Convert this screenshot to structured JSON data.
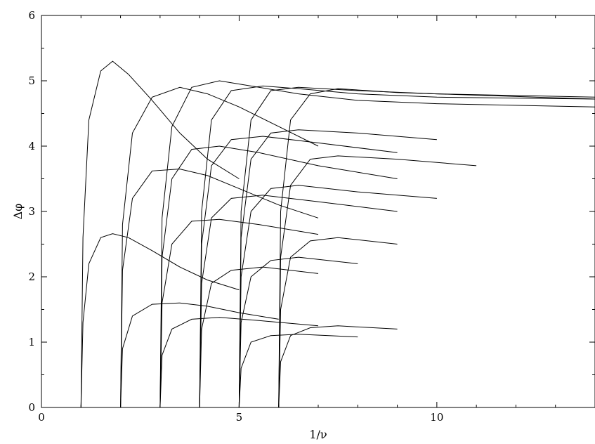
{
  "chart_data": {
    "type": "line",
    "title": "",
    "xlabel": "1/ν",
    "ylabel": "Δφ",
    "xlim": [
      0,
      14
    ],
    "ylim": [
      0,
      6
    ],
    "x_ticks": [
      0,
      5,
      10
    ],
    "x_tick_labels": [
      "0",
      "5",
      "10"
    ],
    "y_ticks": [
      0,
      1,
      2,
      3,
      4,
      5,
      6
    ],
    "y_tick_labels": [
      "0",
      "1",
      "2",
      "3",
      "4",
      "5",
      "6"
    ],
    "grid": false,
    "legend": "none",
    "line_color": "#000000",
    "description_of_curves": "Dense family of arch-shaped curves; each arch family starts at integer 1/ν (1,2,3,...) at Δφ=0, rises steeply, and peaks near Δφ≈5.3 (first), ≈4.7-5.0 for later families, with many lower sub-arches.",
    "series": [
      {
        "x": [
          1.0,
          1.05,
          1.2,
          1.5,
          1.8,
          2.2,
          2.8,
          3.5,
          4.2,
          5.0
        ],
        "y": [
          0,
          2.6,
          4.4,
          5.15,
          5.3,
          5.1,
          4.7,
          4.2,
          3.8,
          3.5
        ]
      },
      {
        "x": [
          1.0,
          1.05,
          1.2,
          1.5,
          1.8,
          2.2,
          2.8,
          3.5,
          4.2,
          5.0
        ],
        "y": [
          0,
          1.3,
          2.2,
          2.6,
          2.66,
          2.6,
          2.4,
          2.15,
          1.95,
          1.8
        ]
      },
      {
        "x": [
          2.0,
          2.05,
          2.3,
          2.8,
          3.5,
          4.2,
          5.0,
          6.0,
          7.0
        ],
        "y": [
          0,
          2.8,
          4.2,
          4.75,
          4.9,
          4.8,
          4.6,
          4.3,
          4.0
        ]
      },
      {
        "x": [
          2.0,
          2.05,
          2.3,
          2.8,
          3.5,
          4.2,
          5.0,
          6.0,
          7.0
        ],
        "y": [
          0,
          2.1,
          3.2,
          3.62,
          3.65,
          3.55,
          3.35,
          3.1,
          2.9
        ]
      },
      {
        "x": [
          2.0,
          2.05,
          2.3,
          2.8,
          3.5,
          4.2,
          5.0,
          6.0
        ],
        "y": [
          0,
          0.9,
          1.4,
          1.58,
          1.6,
          1.55,
          1.45,
          1.35
        ]
      },
      {
        "x": [
          3.0,
          3.05,
          3.3,
          3.8,
          4.5,
          5.5,
          6.5,
          8.0,
          10.0,
          14.0
        ],
        "y": [
          0,
          2.9,
          4.3,
          4.9,
          5.0,
          4.9,
          4.8,
          4.7,
          4.65,
          4.6
        ]
      },
      {
        "x": [
          3.0,
          3.05,
          3.3,
          3.8,
          4.5,
          5.5,
          7.0,
          9.0
        ],
        "y": [
          0,
          2.3,
          3.5,
          3.95,
          4.0,
          3.9,
          3.7,
          3.5
        ]
      },
      {
        "x": [
          3.0,
          3.05,
          3.3,
          3.8,
          4.5,
          5.5,
          7.0
        ],
        "y": [
          0,
          1.6,
          2.5,
          2.85,
          2.88,
          2.8,
          2.65
        ]
      },
      {
        "x": [
          3.0,
          3.05,
          3.3,
          3.8,
          4.5,
          5.5,
          7.0
        ],
        "y": [
          0,
          0.8,
          1.2,
          1.35,
          1.38,
          1.33,
          1.25
        ]
      },
      {
        "x": [
          4.0,
          4.05,
          4.3,
          4.8,
          5.6,
          6.5,
          8.0,
          10.0,
          14.0
        ],
        "y": [
          0,
          3.0,
          4.4,
          4.85,
          4.92,
          4.88,
          4.8,
          4.75,
          4.72
        ]
      },
      {
        "x": [
          4.0,
          4.05,
          4.3,
          4.8,
          5.6,
          7.0,
          9.0
        ],
        "y": [
          0,
          2.5,
          3.7,
          4.1,
          4.15,
          4.05,
          3.9
        ]
      },
      {
        "x": [
          4.0,
          4.05,
          4.3,
          4.8,
          5.6,
          7.0,
          9.0
        ],
        "y": [
          0,
          1.9,
          2.9,
          3.2,
          3.25,
          3.15,
          3.0
        ]
      },
      {
        "x": [
          4.0,
          4.05,
          4.3,
          4.8,
          5.6,
          7.0
        ],
        "y": [
          0,
          1.2,
          1.9,
          2.1,
          2.15,
          2.05
        ]
      },
      {
        "x": [
          5.0,
          5.05,
          5.3,
          5.8,
          6.5,
          8.0,
          10.0,
          14.0
        ],
        "y": [
          0,
          3.0,
          4.4,
          4.85,
          4.9,
          4.85,
          4.8,
          4.75
        ]
      },
      {
        "x": [
          5.0,
          5.05,
          5.3,
          5.8,
          6.5,
          8.0,
          10.0
        ],
        "y": [
          0,
          2.6,
          3.8,
          4.2,
          4.25,
          4.2,
          4.1
        ]
      },
      {
        "x": [
          5.0,
          5.05,
          5.3,
          5.8,
          6.5,
          8.0,
          10.0
        ],
        "y": [
          0,
          2.0,
          3.0,
          3.35,
          3.4,
          3.3,
          3.2
        ]
      },
      {
        "x": [
          5.0,
          5.05,
          5.3,
          5.8,
          6.5,
          8.0
        ],
        "y": [
          0,
          1.3,
          2.0,
          2.25,
          2.3,
          2.2
        ]
      },
      {
        "x": [
          5.0,
          5.05,
          5.3,
          5.8,
          6.5,
          8.0
        ],
        "y": [
          0,
          0.6,
          1.0,
          1.1,
          1.12,
          1.08
        ]
      },
      {
        "x": [
          6.0,
          6.05,
          6.3,
          6.8,
          7.5,
          9.0,
          11.0,
          14.0
        ],
        "y": [
          0,
          3.0,
          4.4,
          4.8,
          4.88,
          4.82,
          4.78,
          4.72
        ]
      },
      {
        "x": [
          6.0,
          6.05,
          6.3,
          6.8,
          7.5,
          9.0,
          11.0
        ],
        "y": [
          0,
          2.3,
          3.4,
          3.8,
          3.85,
          3.8,
          3.7
        ]
      },
      {
        "x": [
          6.0,
          6.05,
          6.3,
          6.8,
          7.5,
          9.0
        ],
        "y": [
          0,
          1.5,
          2.3,
          2.55,
          2.6,
          2.5
        ]
      },
      {
        "x": [
          6.0,
          6.05,
          6.3,
          6.8,
          7.5,
          9.0
        ],
        "y": [
          0,
          0.7,
          1.1,
          1.22,
          1.25,
          1.2
        ]
      }
    ]
  }
}
